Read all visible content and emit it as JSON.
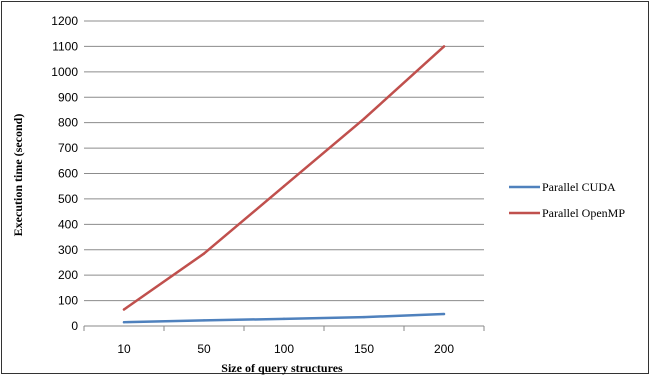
{
  "chart_data": {
    "type": "line",
    "categories": [
      "10",
      "50",
      "100",
      "150",
      "200"
    ],
    "series": [
      {
        "name": "Parallel CUDA",
        "color": "#4f81bd",
        "values": [
          15,
          22,
          28,
          35,
          47
        ]
      },
      {
        "name": "Parallel OpenMP",
        "color": "#c0504d",
        "values": [
          65,
          285,
          550,
          815,
          1100
        ]
      }
    ],
    "xlabel": "Size of query structures",
    "ylabel": "Execution time (second)",
    "ylim": [
      0,
      1200
    ],
    "yticks": [
      "0",
      "100",
      "200",
      "300",
      "400",
      "500",
      "600",
      "700",
      "800",
      "900",
      "1000",
      "1100",
      "1200"
    ],
    "grid": true,
    "legend_position": "right"
  }
}
